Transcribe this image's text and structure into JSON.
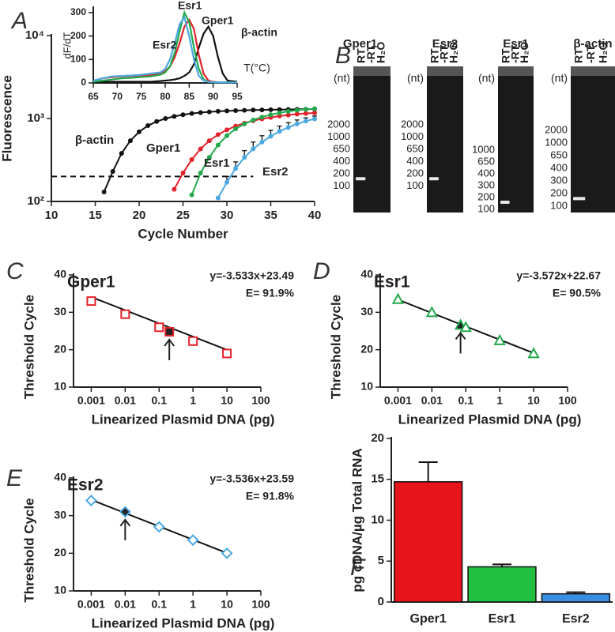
{
  "chart_data": [
    {
      "type": "line",
      "panel": "A",
      "xlabel": "Cycle Number",
      "ylabel": "Fluorescence",
      "x": [
        15,
        16,
        17,
        18,
        19,
        20,
        21,
        22,
        23,
        24,
        25,
        26,
        27,
        28,
        29,
        30,
        31,
        32,
        33,
        34,
        35,
        36,
        37,
        38,
        39,
        40
      ],
      "series": [
        {
          "name": "β-actin",
          "color": "#111111",
          "values": [
            null,
            130,
            230,
            380,
            540,
            690,
            820,
            920,
            1000,
            1060,
            1110,
            1150,
            1180,
            1200,
            1220,
            1235,
            1245,
            1255,
            1265,
            1270,
            1275,
            1280,
            1285,
            1290,
            1295,
            1300
          ]
        },
        {
          "name": "Gper1",
          "color": "#e3222b",
          "values": [
            null,
            null,
            null,
            null,
            null,
            null,
            null,
            null,
            null,
            140,
            220,
            320,
            430,
            540,
            640,
            730,
            810,
            880,
            940,
            990,
            1030,
            1070,
            1100,
            1130,
            1150,
            1170
          ]
        },
        {
          "name": "Esr1",
          "color": "#22a84a",
          "values": [
            null,
            null,
            null,
            null,
            null,
            null,
            null,
            null,
            null,
            null,
            null,
            120,
            220,
            340,
            480,
            620,
            750,
            860,
            960,
            1040,
            1110,
            1170,
            1220,
            1260,
            1290,
            1310
          ]
        },
        {
          "name": "Esr2",
          "color": "#4aa8e0",
          "values": [
            null,
            null,
            null,
            null,
            null,
            null,
            null,
            null,
            null,
            null,
            null,
            null,
            null,
            null,
            110,
            170,
            250,
            340,
            430,
            520,
            610,
            700,
            780,
            860,
            930,
            990
          ],
          "errors": [
            null,
            null,
            null,
            null,
            null,
            null,
            null,
            null,
            null,
            null,
            null,
            null,
            null,
            null,
            null,
            30,
            50,
            70,
            90,
            100,
            110,
            110,
            110,
            100,
            90,
            80
          ]
        }
      ],
      "xlim": [
        10,
        40
      ],
      "xticks": [
        10,
        15,
        20,
        25,
        30,
        35,
        40
      ],
      "ylim": [
        100,
        10000
      ],
      "log_y": true,
      "yticks": [
        {
          "value": 100,
          "label": "10²"
        },
        {
          "value": 1000,
          "label": "10³"
        },
        {
          "value": 10000,
          "label": "10⁴"
        }
      ],
      "threshold": 200,
      "threshold_x_end": 33
    },
    {
      "type": "line",
      "xlabel": "T(°C)",
      "ylabel": "dF/dT",
      "x": [
        65,
        67,
        69,
        71,
        73,
        75,
        77,
        79,
        80,
        81,
        82,
        83,
        84,
        85,
        86,
        87,
        88,
        89,
        90,
        91,
        92,
        93,
        95
      ],
      "series": [
        {
          "name": "β-actin",
          "color": "#111111",
          "values": [
            5,
            5,
            5,
            5,
            5,
            5,
            5,
            8,
            10,
            12,
            15,
            20,
            30,
            45,
            80,
            150,
            210,
            240,
            200,
            110,
            40,
            10,
            5
          ]
        },
        {
          "name": "Gper1",
          "color": "#e3222b",
          "values": [
            10,
            20,
            25,
            28,
            30,
            32,
            35,
            40,
            50,
            70,
            110,
            170,
            240,
            270,
            230,
            120,
            40,
            10,
            5,
            3,
            2,
            2,
            2
          ]
        },
        {
          "name": "Esr1",
          "color": "#22a84a",
          "values": [
            5,
            10,
            15,
            20,
            22,
            25,
            28,
            35,
            45,
            70,
            130,
            220,
            300,
            260,
            150,
            60,
            15,
            5,
            3,
            2,
            2,
            2,
            2
          ]
        },
        {
          "name": "Esr2",
          "color": "#4aa8e0",
          "values": [
            10,
            20,
            28,
            30,
            32,
            35,
            40,
            45,
            60,
            100,
            170,
            250,
            280,
            200,
            100,
            30,
            10,
            5,
            3,
            2,
            2,
            2,
            2
          ]
        }
      ],
      "xlim": [
        65,
        95
      ],
      "xticks": [
        65,
        70,
        75,
        80,
        85,
        90,
        95
      ],
      "ylim": [
        0,
        320
      ],
      "yticks": [
        0,
        100,
        200,
        300
      ]
    },
    {
      "type": "scatter",
      "panel": "C",
      "title": "Gper1",
      "color": "#e3222b",
      "marker": "square",
      "annotations": [
        "y=-3.533x+23.49",
        "E= 91.9%"
      ],
      "xlabel": "Linearized Plasmid DNA (pg)",
      "ylabel": "Threshold Cycle",
      "x": [
        0.001,
        0.01,
        0.1,
        0.2,
        1,
        10
      ],
      "values": [
        33,
        29.5,
        26,
        24.8,
        22.3,
        19
      ],
      "highlight": 3,
      "fit": {
        "x": [
          0.001,
          10
        ],
        "values": [
          34.09,
          19.96
        ]
      },
      "xlim": [
        0.0003,
        100
      ],
      "log_x": true,
      "xticks": [
        0.001,
        0.01,
        0.1,
        1,
        10,
        100
      ],
      "ylim": [
        10,
        40
      ],
      "yticks": [
        10,
        20,
        30,
        40
      ]
    },
    {
      "type": "scatter",
      "panel": "D",
      "title": "Esr1",
      "color": "#22a84a",
      "marker": "triangle",
      "annotations": [
        "y=-3.572x+22.67",
        "E= 90.5%"
      ],
      "xlabel": "Linearized Plasmid DNA (pg)",
      "ylabel": "Threshold Cycle",
      "x": [
        0.001,
        0.01,
        0.07,
        0.1,
        1,
        10
      ],
      "values": [
        33.5,
        30,
        26.6,
        26,
        22.5,
        19
      ],
      "highlight": 2,
      "fit": {
        "x": [
          0.001,
          10
        ],
        "values": [
          33.39,
          19.1
        ]
      },
      "xlim": [
        0.0003,
        100
      ],
      "log_x": true,
      "xticks": [
        0.001,
        0.01,
        0.1,
        1,
        10,
        100
      ],
      "ylim": [
        10,
        40
      ],
      "yticks": [
        10,
        20,
        30,
        40
      ]
    },
    {
      "type": "scatter",
      "panel": "E",
      "title": "Esr2",
      "color": "#4aa8e0",
      "marker": "diamond",
      "annotations": [
        "y=-3.536x+23.59",
        "E= 91.8%"
      ],
      "xlabel": "Linearized Plasmid DNA (pg)",
      "ylabel": "Threshold Cycle",
      "x": [
        0.001,
        0.01,
        0.1,
        1,
        10
      ],
      "values": [
        34,
        31,
        27,
        23.5,
        20
      ],
      "highlight": 1,
      "fit": {
        "x": [
          0.001,
          10
        ],
        "values": [
          34.2,
          20.05
        ]
      },
      "xlim": [
        0.0003,
        100
      ],
      "log_x": true,
      "xticks": [
        0.001,
        0.01,
        0.1,
        1,
        10,
        100
      ],
      "ylim": [
        10,
        40
      ],
      "yticks": [
        10,
        20,
        30,
        40
      ]
    },
    {
      "type": "bar",
      "panel": "F",
      "ylabel": "pg cDNA/µg Total RNA",
      "categories": [
        "Gper1",
        "Esr1",
        "Esr2"
      ],
      "values": [
        14.7,
        4.3,
        1.0
      ],
      "errors": [
        2.4,
        0.3,
        0.2
      ],
      "colors": [
        "#e8141c",
        "#22c040",
        "#3a8ee0"
      ],
      "ylim": [
        0,
        20
      ],
      "yticks": [
        0,
        5,
        10,
        15,
        20
      ]
    }
  ],
  "gels": {
    "panel": "B",
    "unit": "(nt)",
    "lanes": [
      "RT",
      "-RT",
      "H₂O"
    ],
    "items": [
      {
        "title": "Gper1",
        "markers": [
          "2000",
          "1000",
          "650",
          "400",
          "200",
          "100"
        ]
      },
      {
        "title": "Esr2",
        "markers": [
          "2000",
          "1000",
          "650",
          "400",
          "200",
          "100"
        ]
      },
      {
        "title": "Esr1",
        "markers": [
          "1000",
          "650",
          "400",
          "300",
          "200",
          "100"
        ]
      },
      {
        "title": "β-actin",
        "markers": [
          "2000",
          "1000",
          "650",
          "400",
          "300",
          "200",
          "100"
        ]
      }
    ]
  }
}
